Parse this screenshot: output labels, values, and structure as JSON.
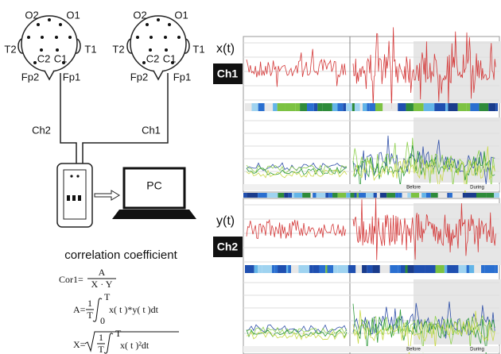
{
  "heads": [
    {
      "o_left": "O2",
      "o_right": "O1",
      "t_left": "T2",
      "t_right": "T1",
      "c_left": "C2",
      "c_right": "C1",
      "fp_left": "Fp2",
      "fp_right": "Fp1"
    },
    {
      "o_left": "O2",
      "o_right": "O1",
      "t_left": "T2",
      "t_right": "T1",
      "c_left": "C2",
      "c_right": "C1",
      "fp_left": "Fp2",
      "fp_right": "Fp1"
    }
  ],
  "channels": {
    "left": "Ch2",
    "right": "Ch1"
  },
  "pc": "PC",
  "formula_title": "correlation coefficient",
  "formulas": {
    "cor1": {
      "lhs": "Cor1=",
      "num": "A",
      "den": "X · Y"
    },
    "a": {
      "lhs": "A=",
      "num": "1",
      "den": "T",
      "upper": "T",
      "lower": "0",
      "body": "x( t )*y( t )dt"
    },
    "x": {
      "lhs": "X=",
      "num": "1",
      "den": "T",
      "upper": "T",
      "lower": "0",
      "body": "x( t )²dt"
    }
  },
  "panels": [
    {
      "signal": "x(t)",
      "channel": "Ch1",
      "before": "Before",
      "during": "During"
    },
    {
      "signal": "y(t)",
      "channel": "Ch2",
      "before": "Before",
      "during": "During"
    }
  ]
}
